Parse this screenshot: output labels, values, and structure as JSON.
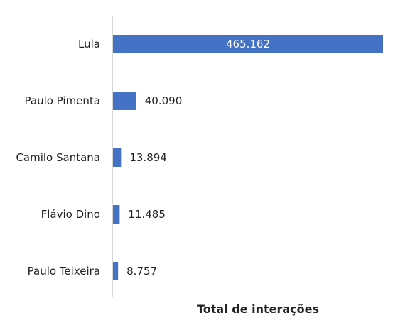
{
  "chart_data": {
    "type": "bar",
    "orientation": "horizontal",
    "categories": [
      "Lula",
      "Paulo Pimenta",
      "Camilo Santana",
      "Flávio Dino",
      "Paulo Teixeira"
    ],
    "values": [
      465162,
      40090,
      13894,
      11485,
      8757
    ],
    "value_labels": [
      "465.162",
      "40.090",
      "13.894",
      "11.485",
      "8.757"
    ],
    "xlabel": "Total de interações",
    "ylabel": "",
    "xlim": [
      0,
      465162
    ],
    "grid": false,
    "legend": "none",
    "bar_color": "#4472C4",
    "axis_color": "#c9c9c9"
  }
}
